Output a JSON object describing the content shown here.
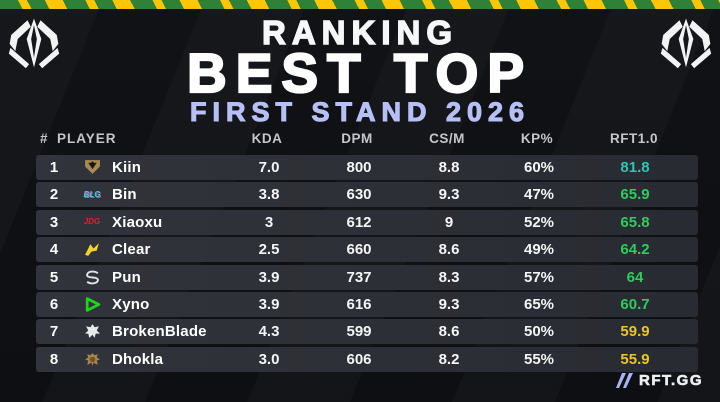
{
  "header": {
    "title_small": "RANKING",
    "title_big": "BEST TOP",
    "subtitle": "FIRST STAND 2026",
    "subtitle_color": "#b7c0f6",
    "event_logo_icon": "msi-trophy-icon"
  },
  "table": {
    "columns": [
      "#",
      "PLAYER",
      "KDA",
      "DPM",
      "CS/M",
      "KP%",
      "RFT1.0"
    ],
    "rows": [
      {
        "rank": "1",
        "team_icon": "geng-shield-icon",
        "player": "Kiin",
        "kda": "7.0",
        "dpm": "800",
        "csm": "8.8",
        "kp": "60%",
        "rft": "81.8",
        "rft_color": "#2cc6b2"
      },
      {
        "rank": "2",
        "team_icon": "blg-wordmark-icon",
        "player": "Bin",
        "kda": "3.8",
        "dpm": "630",
        "csm": "9.3",
        "kp": "47%",
        "rft": "65.9",
        "rft_color": "#2ecc5e"
      },
      {
        "rank": "3",
        "team_icon": "jdg-wordmark-icon",
        "player": "Xiaoxu",
        "kda": "3",
        "dpm": "612",
        "csm": "9",
        "kp": "52%",
        "rft": "65.8",
        "rft_color": "#2ecc5e"
      },
      {
        "rank": "4",
        "team_icon": "yellow-dragon-icon",
        "player": "Clear",
        "kda": "2.5",
        "dpm": "660",
        "csm": "8.6",
        "kp": "49%",
        "rft": "64.2",
        "rft_color": "#2ecc5e"
      },
      {
        "rank": "5",
        "team_icon": "secret-s-icon",
        "player": "Pun",
        "kda": "3.9",
        "dpm": "737",
        "csm": "8.3",
        "kp": "57%",
        "rft": "64",
        "rft_color": "#2ecc5e"
      },
      {
        "rank": "6",
        "team_icon": "green-triangle-icon",
        "player": "Xyno",
        "kda": "3.9",
        "dpm": "616",
        "csm": "9.3",
        "kp": "65%",
        "rft": "60.7",
        "rft_color": "#2ecc5e"
      },
      {
        "rank": "7",
        "team_icon": "g2-emblem-icon",
        "player": "BrokenBlade",
        "kda": "4.3",
        "dpm": "599",
        "csm": "8.6",
        "kp": "50%",
        "rft": "59.9",
        "rft_color": "#e8c52a"
      },
      {
        "rank": "8",
        "team_icon": "lyon-lion-icon",
        "player": "Dhokla",
        "kda": "3.0",
        "dpm": "606",
        "csm": "8.2",
        "kp": "55%",
        "rft": "55.9",
        "rft_color": "#e8c52a"
      }
    ]
  },
  "footer": {
    "brand": "RFT.GG",
    "brand_icon": "rft-bolt-icon",
    "brand_icon_color": "#a9b3ef"
  },
  "colors": {
    "background": "#101216",
    "stripe_green": "#2e8136",
    "stripe_yellow": "#ffc608",
    "row_background": "#2d3036",
    "header_text": "#c3c6cb",
    "rft_teal": "#2cc6b2",
    "rft_green": "#2ecc5e",
    "rft_yellow": "#e8c52a"
  },
  "chart_data": {
    "type": "table",
    "title": "RANKING BEST TOP",
    "subtitle": "FIRST STAND 2026",
    "columns": [
      "#",
      "PLAYER",
      "KDA",
      "DPM",
      "CS/M",
      "KP%",
      "RFT1.0"
    ],
    "rows": [
      [
        1,
        "Kiin",
        7.0,
        800,
        8.8,
        "60%",
        81.8
      ],
      [
        2,
        "Bin",
        3.8,
        630,
        9.3,
        "47%",
        65.9
      ],
      [
        3,
        "Xiaoxu",
        3,
        612,
        9,
        "52%",
        65.8
      ],
      [
        4,
        "Clear",
        2.5,
        660,
        8.6,
        "49%",
        64.2
      ],
      [
        5,
        "Pun",
        3.9,
        737,
        8.3,
        "57%",
        64
      ],
      [
        6,
        "Xyno",
        3.9,
        616,
        9.3,
        "65%",
        60.7
      ],
      [
        7,
        "BrokenBlade",
        4.3,
        599,
        8.6,
        "50%",
        59.9
      ],
      [
        8,
        "Dhokla",
        3.0,
        606,
        8.2,
        "55%",
        55.9
      ]
    ]
  }
}
